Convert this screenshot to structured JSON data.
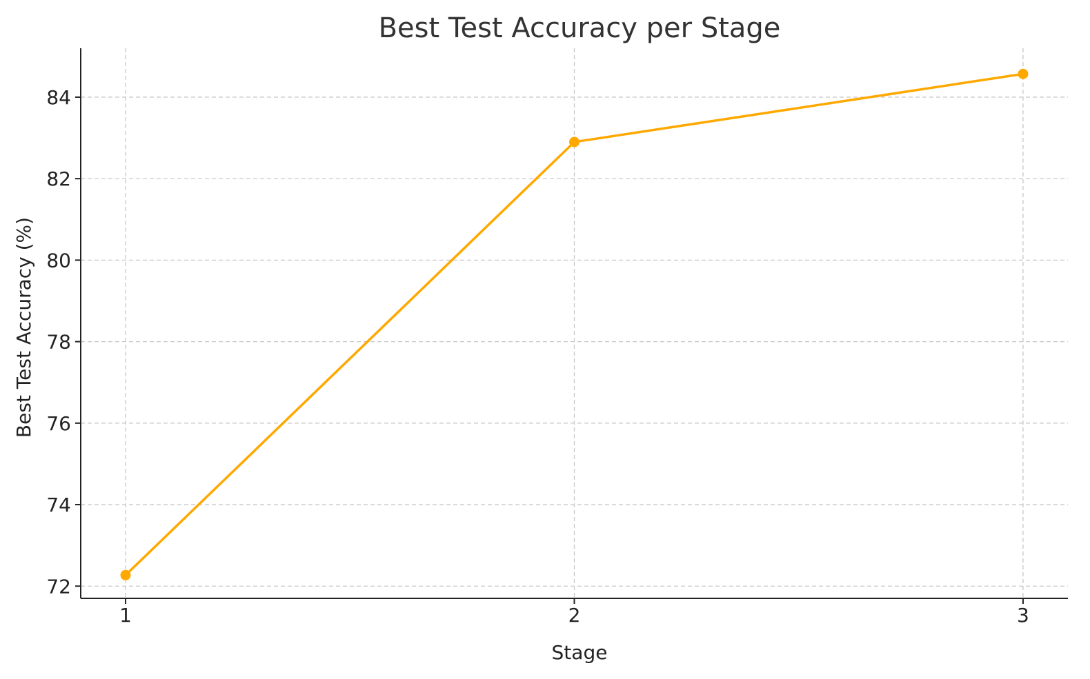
{
  "chart_data": {
    "type": "line",
    "title": "Best Test Accuracy per Stage",
    "xlabel": "Stage",
    "ylabel": "Best Test Accuracy (%)",
    "x": [
      1,
      2,
      3
    ],
    "xticks": [
      "1",
      "2",
      "3"
    ],
    "xlim": [
      0.9,
      3.1
    ],
    "ylim": [
      71.7,
      85.2
    ],
    "yticks": [
      72,
      74,
      76,
      78,
      80,
      82,
      84
    ],
    "grid": true,
    "series": [
      {
        "values": [
          72.27,
          82.9,
          84.57
        ],
        "color": "#FFA800",
        "marker": "circle"
      }
    ]
  }
}
